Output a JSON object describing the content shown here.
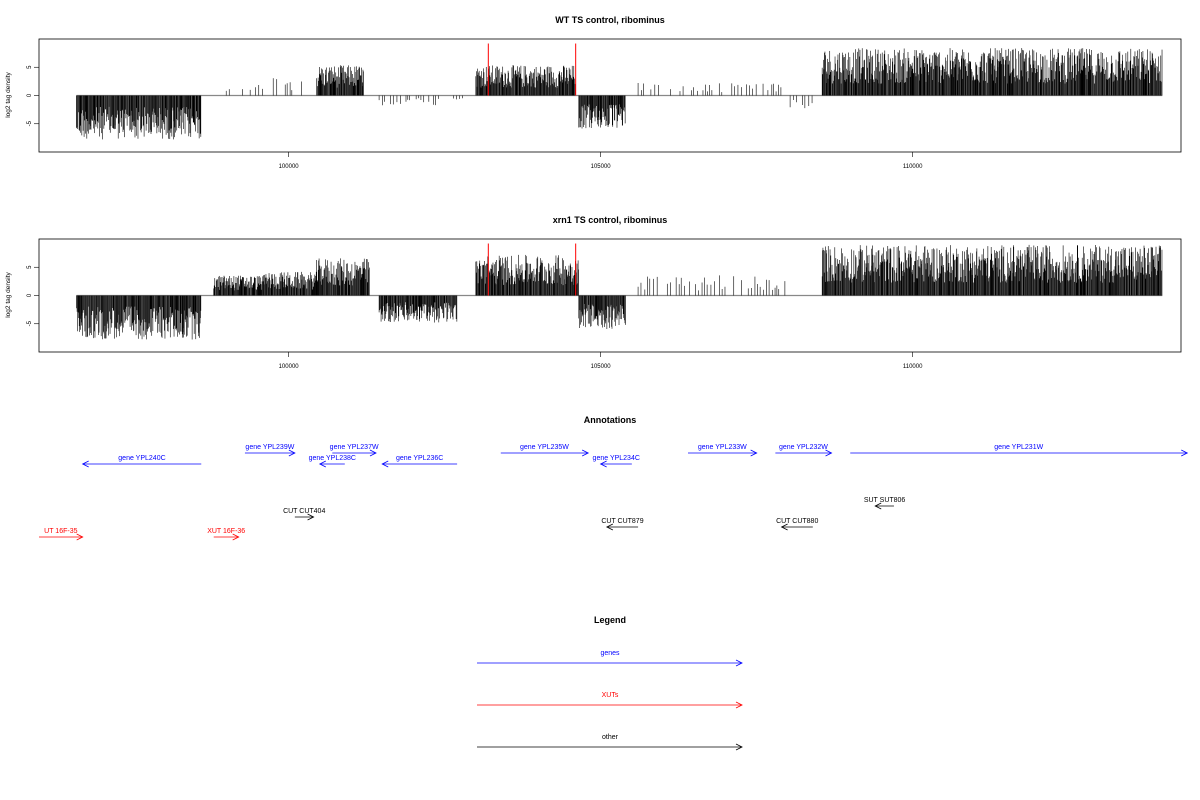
{
  "chart_data": [
    {
      "type": "bar",
      "title": "WT TS control, ribominus",
      "ylabel": "log2 tag density",
      "xlim": [
        96000,
        114300
      ],
      "ylim": [
        -10,
        10
      ],
      "xticks": [
        100000,
        105000,
        110000
      ],
      "yticks": [
        -5,
        0,
        5
      ],
      "baseline": 0,
      "regions": [
        {
          "start": 96600,
          "end": 98600,
          "sign": -1,
          "amp": 6.5
        },
        {
          "start": 99000,
          "end": 99600,
          "sign": 1,
          "amp": 2,
          "sparse": true
        },
        {
          "start": 99600,
          "end": 100250,
          "sign": 1,
          "amp": 3,
          "sparse": true
        },
        {
          "start": 100450,
          "end": 101200,
          "sign": 1,
          "amp": 4.5
        },
        {
          "start": 101450,
          "end": 102800,
          "sign": -1,
          "amp": 1.5,
          "sparse": true
        },
        {
          "start": 103000,
          "end": 104600,
          "sign": 1,
          "amp": 4.5
        },
        {
          "start": 104650,
          "end": 105400,
          "sign": -1,
          "amp": 5
        },
        {
          "start": 105600,
          "end": 108000,
          "sign": 1,
          "amp": 2,
          "sparse": true
        },
        {
          "start": 108000,
          "end": 108400,
          "sign": -1,
          "amp": 2,
          "sparse": true
        },
        {
          "start": 108550,
          "end": 114000,
          "sign": 1,
          "amp": 7
        }
      ],
      "markers": [
        103200,
        104600
      ]
    },
    {
      "type": "bar",
      "title": "xrn1 TS control, ribominus",
      "ylabel": "log2 tag density",
      "xlim": [
        96000,
        114300
      ],
      "ylim": [
        -10,
        10
      ],
      "xticks": [
        100000,
        105000,
        110000
      ],
      "yticks": [
        -5,
        0,
        5
      ],
      "baseline": 0,
      "regions": [
        {
          "start": 96600,
          "end": 98600,
          "sign": -1,
          "amp": 6.5
        },
        {
          "start": 98800,
          "end": 99600,
          "sign": 1,
          "amp": 3
        },
        {
          "start": 99600,
          "end": 100450,
          "sign": 1,
          "amp": 3.5
        },
        {
          "start": 100450,
          "end": 101300,
          "sign": 1,
          "amp": 5.5
        },
        {
          "start": 101450,
          "end": 102700,
          "sign": -1,
          "amp": 4
        },
        {
          "start": 103000,
          "end": 104650,
          "sign": 1,
          "amp": 6
        },
        {
          "start": 104650,
          "end": 105400,
          "sign": -1,
          "amp": 5
        },
        {
          "start": 105600,
          "end": 108000,
          "sign": 1,
          "amp": 3,
          "sparse": true
        },
        {
          "start": 108550,
          "end": 114000,
          "sign": 1,
          "amp": 7.5
        }
      ],
      "markers": [
        103200,
        104600
      ]
    }
  ],
  "annotations": {
    "title": "Annotations",
    "items": [
      {
        "label": "gene YPL240C",
        "start": 98600,
        "end": 96700,
        "row": 2,
        "color": "blue"
      },
      {
        "label": "gene YPL239W",
        "start": 99300,
        "end": 100100,
        "row": 1,
        "color": "blue"
      },
      {
        "label": "gene YPL237W",
        "start": 100700,
        "end": 101400,
        "row": 1,
        "color": "blue"
      },
      {
        "label": "gene YPL238C",
        "start": 100900,
        "end": 100500,
        "row": 2,
        "color": "blue"
      },
      {
        "label": "gene YPL236C",
        "start": 102700,
        "end": 101500,
        "row": 2,
        "color": "blue"
      },
      {
        "label": "gene YPL235W",
        "start": 103400,
        "end": 104800,
        "row": 1,
        "color": "blue"
      },
      {
        "label": "gene YPL234C",
        "start": 105500,
        "end": 105000,
        "row": 2,
        "color": "blue"
      },
      {
        "label": "gene YPL233W",
        "start": 106400,
        "end": 107500,
        "row": 1,
        "color": "blue"
      },
      {
        "label": "gene YPL232W",
        "start": 107800,
        "end": 108700,
        "row": 1,
        "color": "blue"
      },
      {
        "label": "gene YPL231W",
        "start": 109000,
        "end": 114400,
        "row": 1,
        "color": "blue"
      },
      {
        "label": "SUT SUT806",
        "start": 109700,
        "end": 109400,
        "row": 3,
        "color": "black"
      },
      {
        "label": "CUT CUT404",
        "start": 100100,
        "end": 100400,
        "row": 4,
        "color": "black"
      },
      {
        "label": "CUT CUT879",
        "start": 105600,
        "end": 105100,
        "row": 5,
        "color": "black"
      },
      {
        "label": "CUT CUT880",
        "start": 108400,
        "end": 107900,
        "row": 5,
        "color": "black"
      },
      {
        "label": "UT 16F-35",
        "start": 96000,
        "end": 96700,
        "row": 6,
        "color": "red"
      },
      {
        "label": "XUT 16F-36",
        "start": 98800,
        "end": 99200,
        "row": 6,
        "color": "red"
      }
    ]
  },
  "legend": {
    "title": "Legend",
    "entries": [
      {
        "label": "genes",
        "color": "blue"
      },
      {
        "label": "XUTs",
        "color": "red"
      },
      {
        "label": "other",
        "color": "black"
      }
    ]
  }
}
